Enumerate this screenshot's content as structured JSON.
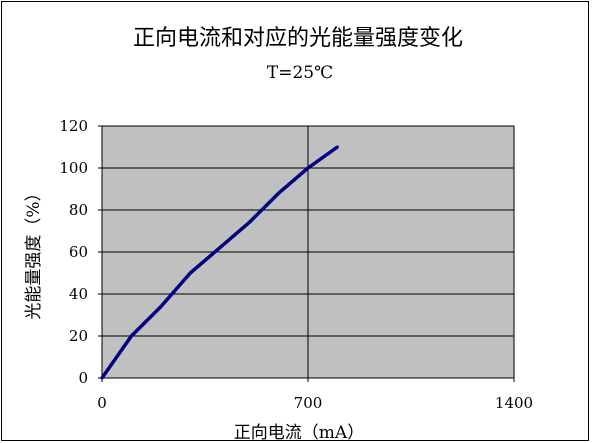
{
  "chart_data": {
    "type": "line",
    "title": "正向电流和对应的光能量强度变化",
    "subtitle": "T=25℃",
    "xlabel": "正向电流（mA）",
    "ylabel": "光能量强度（%）",
    "xlim": [
      0,
      1400
    ],
    "ylim": [
      0,
      120
    ],
    "xticks": [
      "0",
      "700",
      "1400"
    ],
    "yticks": [
      "0",
      "20",
      "40",
      "60",
      "80",
      "100",
      "120"
    ],
    "grid": "horizontal gridlines every 20; vertical gridline at 700",
    "legend": "none",
    "plot_background": "#c0c0c0",
    "series": [
      {
        "color": "#000080",
        "x": [
          0,
          100,
          200,
          300,
          400,
          500,
          600,
          700,
          800
        ],
        "y": [
          0,
          20,
          34,
          50,
          62,
          74,
          88,
          100,
          110
        ]
      }
    ]
  }
}
